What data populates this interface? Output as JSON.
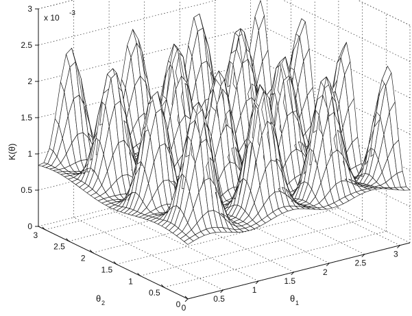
{
  "chart_data": {
    "type": "surface",
    "title": "",
    "xlabel": "θ1",
    "ylabel": "θ2",
    "zlabel": "K(θ)",
    "z_multiplier_label": "x 10",
    "z_multiplier_exponent": "-3",
    "xlim": [
      0,
      3.14159
    ],
    "ylim": [
      0,
      3.14159
    ],
    "zlim": [
      0,
      3
    ],
    "x_ticks": [
      "0",
      "0.5",
      "1",
      "1.5",
      "2",
      "2.5",
      "3"
    ],
    "y_ticks": [
      "0",
      "0.5",
      "1",
      "1.5",
      "2",
      "2.5",
      "3"
    ],
    "z_ticks": [
      "0",
      "0.5",
      "1",
      "1.5",
      "2",
      "2.5",
      "3"
    ],
    "grid": true,
    "surface": {
      "grid_points": 41,
      "baseline": 0.75,
      "peak_amplitude": 1.65,
      "peak_frequency_theta1": 7,
      "peak_frequency_theta2": 7,
      "max_value": 2.9,
      "min_value": 0.45
    }
  }
}
